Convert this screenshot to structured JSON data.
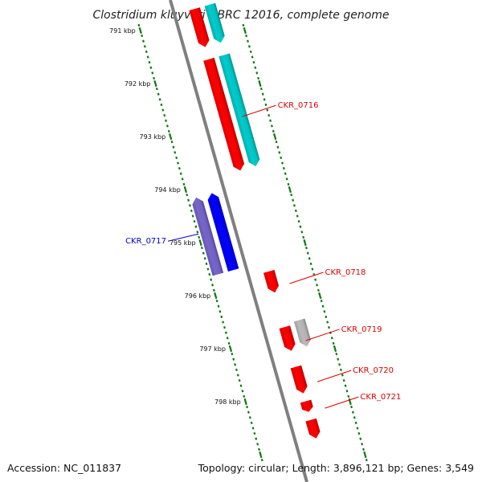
{
  "title": "Clostridium kluyveri NBRC 12016, complete genome",
  "accession": "Accession: NC_011837",
  "summary": "Topology: circular; Length: 3,896,121 bp; Genes: 3,549",
  "colors": {
    "backbone": "#7f7f7f",
    "forward_gene": "#ff0000",
    "forward_cds": "#00cccc",
    "reverse_gene": "#0000ff",
    "reverse_cds": "#7766cc",
    "other_gene": "#bbbbbb",
    "tick": "#117711",
    "forward_label": "#dd0000",
    "reverse_label": "#0000cc"
  },
  "scale_labels": [
    {
      "text": "791 kbp",
      "kbp": 791
    },
    {
      "text": "792 kbp",
      "kbp": 792
    },
    {
      "text": "793 kbp",
      "kbp": 793
    },
    {
      "text": "794 kbp",
      "kbp": 794
    },
    {
      "text": "795 kbp",
      "kbp": 795
    },
    {
      "text": "796 kbp",
      "kbp": 796
    },
    {
      "text": "797 kbp",
      "kbp": 797
    },
    {
      "text": "798 kbp",
      "kbp": 798
    }
  ],
  "genes": [
    {
      "label": "",
      "strand": "+",
      "kind": "gene",
      "start_kbp": 790.7,
      "end_kbp": 791.42
    },
    {
      "label": "",
      "strand": "+",
      "kind": "cds",
      "start_kbp": 790.7,
      "end_kbp": 791.42
    },
    {
      "label": "CKR_0716",
      "strand": "+",
      "kind": "gene",
      "start_kbp": 791.65,
      "end_kbp": 793.75
    },
    {
      "label": "",
      "strand": "+",
      "kind": "cds",
      "start_kbp": 791.65,
      "end_kbp": 793.75
    },
    {
      "label": "CKR_0717",
      "strand": "-",
      "kind": "gene",
      "start_kbp": 794.0,
      "end_kbp": 795.45
    },
    {
      "label": "",
      "strand": "-",
      "kind": "cds",
      "start_kbp": 794.0,
      "end_kbp": 795.45
    },
    {
      "label": "CKR_0718",
      "strand": "+",
      "kind": "gene",
      "start_kbp": 795.65,
      "end_kbp": 796.05
    },
    {
      "label": "CKR_0719",
      "strand": "+",
      "kind": "gene",
      "start_kbp": 796.7,
      "end_kbp": 797.15
    },
    {
      "label": "",
      "strand": "+",
      "kind": "other",
      "start_kbp": 796.65,
      "end_kbp": 797.15
    },
    {
      "label": "CKR_0720",
      "strand": "+",
      "kind": "gene",
      "start_kbp": 797.45,
      "end_kbp": 797.95
    },
    {
      "label": "CKR_0721",
      "strand": "+",
      "kind": "gene",
      "start_kbp": 798.1,
      "end_kbp": 798.3
    },
    {
      "label": "",
      "strand": "+",
      "kind": "gene",
      "start_kbp": 798.45,
      "end_kbp": 798.8
    }
  ]
}
